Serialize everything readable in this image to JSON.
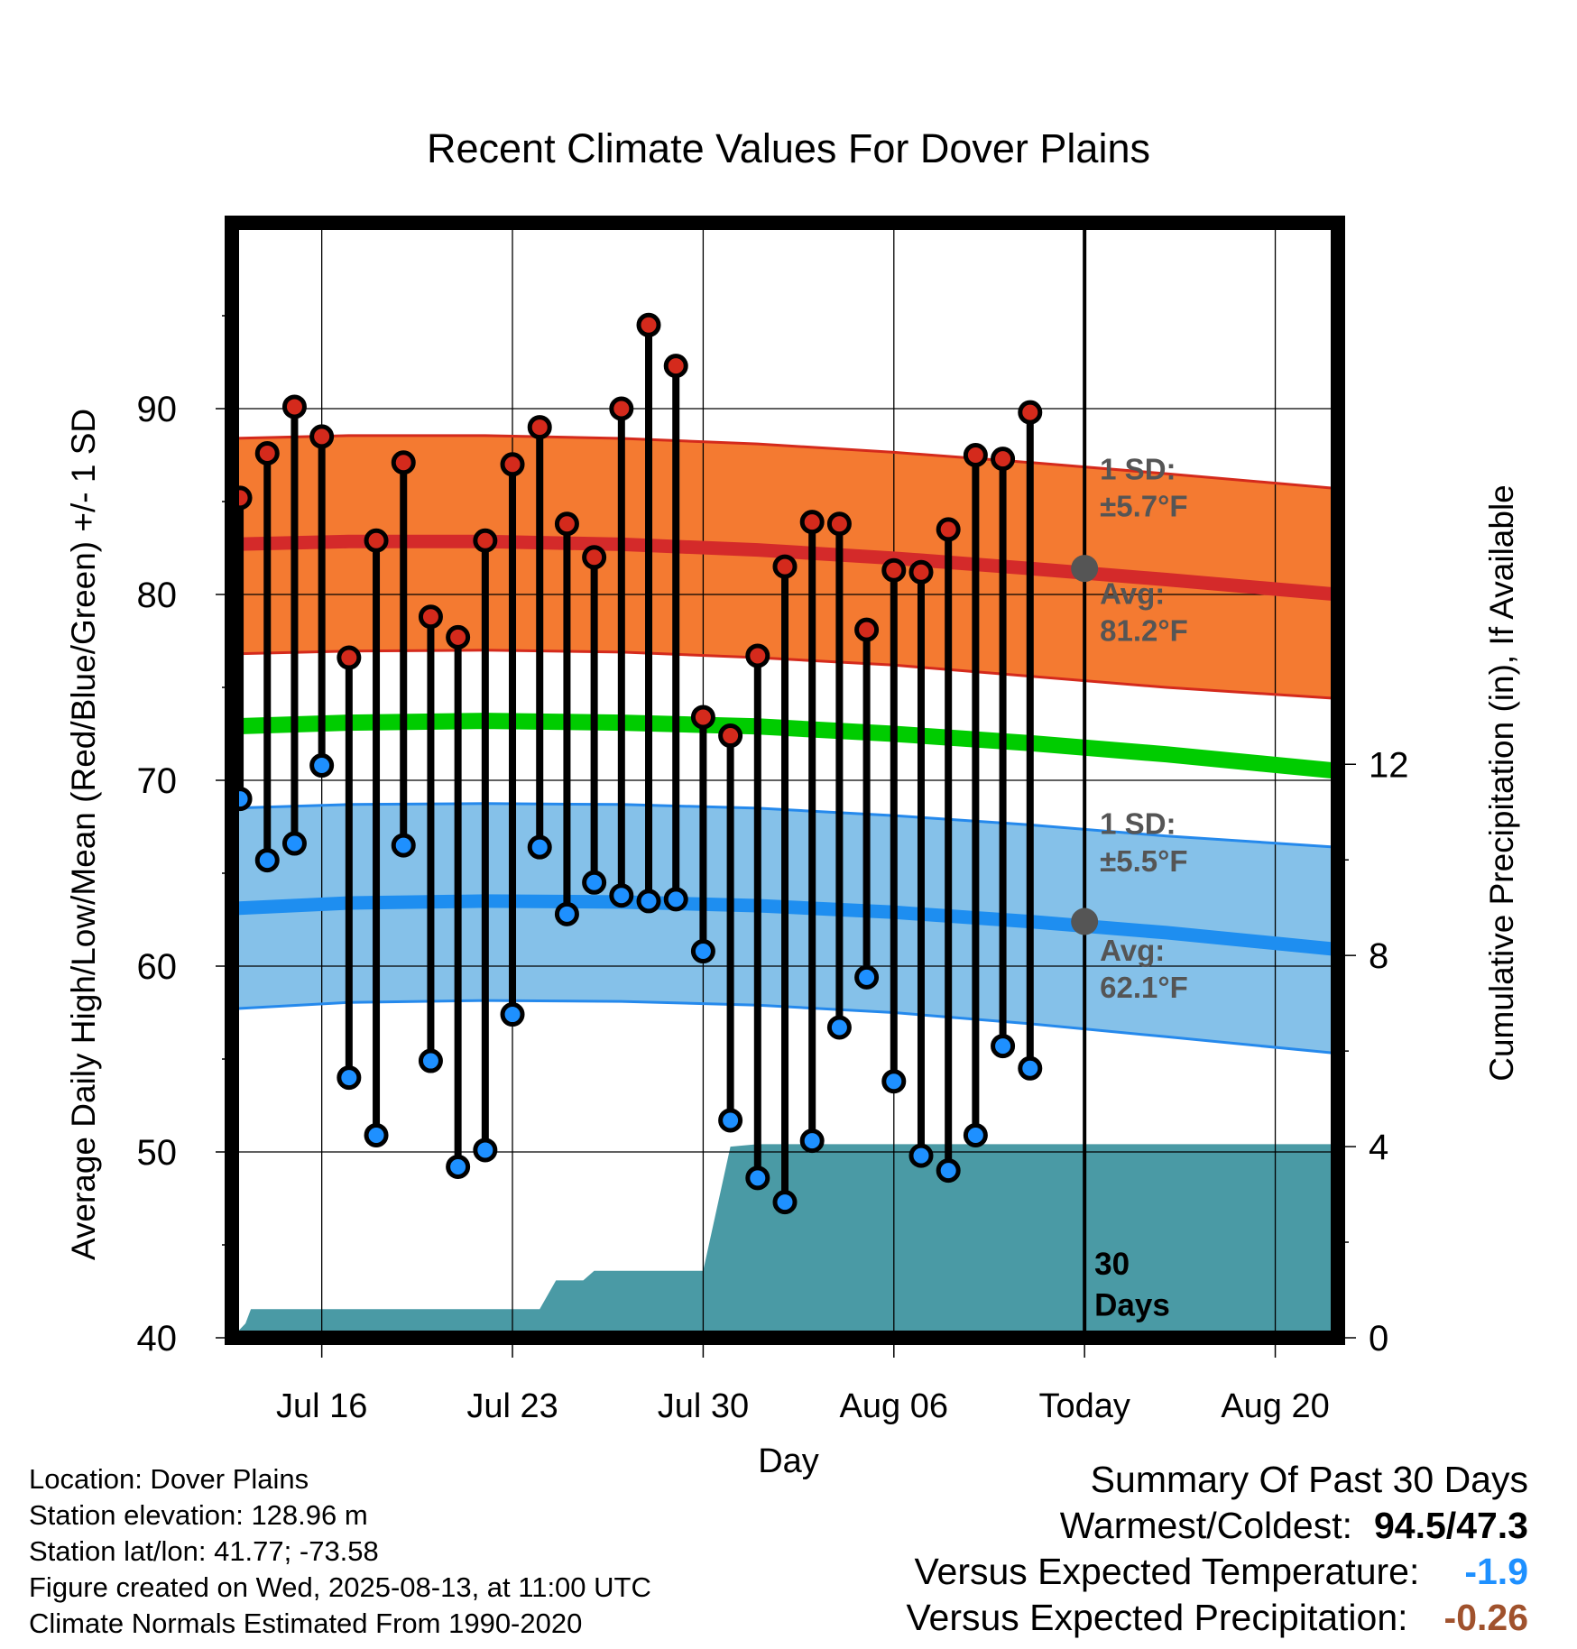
{
  "chart_data": {
    "type": "line",
    "title": "Recent Climate Values For Dover Plains",
    "xlabel": "Day",
    "ylabel": "Average Daily High/Low/Mean (Red/Blue/Green) +/- 1 SD",
    "y2label": "Cumulative Precipitation (in), If Available",
    "ylim": [
      40,
      100
    ],
    "y2lim": [
      0,
      23.33
    ],
    "yticks": [
      "40",
      "50",
      "60",
      "70",
      "80",
      "90"
    ],
    "y2ticks": [
      "0",
      "4",
      "8",
      "12"
    ],
    "xticks": [
      {
        "day": 4,
        "label": "Jul 16"
      },
      {
        "day": 11,
        "label": "Jul 23"
      },
      {
        "day": 18,
        "label": "Jul 30"
      },
      {
        "day": 25,
        "label": "Aug 06"
      },
      {
        "day": 32,
        "label": "Today"
      },
      {
        "day": 39,
        "label": "Aug 20"
      }
    ],
    "xrange": [
      0.7,
      41.3
    ],
    "series": [
      {
        "name": "High",
        "values": [
          85.2,
          87.6,
          90.1,
          88.5,
          76.6,
          82.9,
          87.1,
          78.8,
          77.7,
          82.9,
          87.0,
          89.0,
          83.8,
          82.0,
          90.0,
          94.5,
          92.3,
          73.4,
          72.4,
          76.7,
          81.5,
          83.9,
          83.8,
          78.1,
          81.3,
          81.2,
          83.5,
          87.5,
          87.3,
          89.8
        ]
      },
      {
        "name": "Low",
        "values": [
          69.0,
          65.7,
          66.6,
          70.8,
          54.0,
          50.9,
          66.5,
          54.9,
          49.2,
          50.1,
          57.4,
          66.4,
          62.8,
          64.5,
          63.8,
          63.5,
          63.6,
          60.8,
          51.7,
          48.6,
          47.3,
          50.6,
          56.7,
          59.4,
          53.8,
          49.8,
          49.0,
          50.9,
          55.7,
          54.5
        ]
      }
    ],
    "observed_days": [
      1,
      30
    ],
    "normals": {
      "days": [
        0.7,
        5,
        10,
        15,
        20,
        25,
        30,
        35,
        41.3
      ],
      "high_mean": [
        82.7,
        82.85,
        82.85,
        82.7,
        82.4,
        81.95,
        81.4,
        80.8,
        80.0
      ],
      "high_upper": [
        88.4,
        88.55,
        88.55,
        88.4,
        88.1,
        87.65,
        87.1,
        86.5,
        85.7
      ],
      "high_lower": [
        76.8,
        76.95,
        77.0,
        76.9,
        76.6,
        76.2,
        75.6,
        75.0,
        74.4
      ],
      "low_mean": [
        63.1,
        63.4,
        63.5,
        63.45,
        63.25,
        62.9,
        62.4,
        61.8,
        60.9
      ],
      "low_upper": [
        68.5,
        68.7,
        68.75,
        68.7,
        68.5,
        68.1,
        67.6,
        67.0,
        66.4
      ],
      "low_lower": [
        57.7,
        58.05,
        58.15,
        58.1,
        57.9,
        57.5,
        56.9,
        56.2,
        55.3
      ],
      "mean": [
        72.9,
        73.1,
        73.2,
        73.1,
        72.9,
        72.5,
        72.0,
        71.4,
        70.5
      ]
    },
    "precipitation": {
      "days": [
        0.7,
        1.2,
        1.4,
        11.6,
        12.0,
        12.6,
        13.1,
        13.6,
        14.0,
        17.0,
        18.0,
        19.0,
        20.0,
        21.0,
        31.0,
        41.3
      ],
      "values": [
        0.0,
        0.3,
        0.6,
        0.6,
        0.6,
        1.2,
        1.2,
        1.2,
        1.4,
        1.4,
        1.4,
        4.0,
        4.05,
        4.05,
        4.05,
        4.05
      ]
    },
    "annotations": {
      "high_sd": "±5.7°F",
      "high_avg": "81.2°F",
      "low_sd": "±5.5°F",
      "low_avg": "62.1°F",
      "sd_label": "1 SD:",
      "avg_label": "Avg:",
      "days_label_1": "30",
      "days_label_2": "Days"
    },
    "today_day": 32,
    "grid": true
  },
  "colors": {
    "high_band": "#f47a31",
    "high_edge": "#d42a1c",
    "high_mean": "#d42a2a",
    "low_band": "#85c1e9",
    "low_edge": "#2589ec",
    "low_mean": "#1e8ef0",
    "mean_line": "#00cc00",
    "precip": "#4a9aa5",
    "high_dot": "#d42a1c",
    "low_dot": "#1e90ff",
    "annotation": "#555555",
    "temp_diff": "#1e90ff",
    "precip_diff": "#a0522d"
  },
  "info": {
    "location": "Location: Dover Plains",
    "elevation": "Station elevation: 128.96 m",
    "latlon": "Station lat/lon: 41.77; -73.58",
    "created": "Figure created on Wed, 2025-08-13, at 11:00 UTC",
    "normals": "Climate Normals Estimated From 1990-2020"
  },
  "summary": {
    "title": "Summary Of Past 30 Days",
    "warm_label": "Warmest/Coldest:",
    "warm_value": "94.5/47.3",
    "temp_label": "Versus Expected Temperature:",
    "temp_value": "-1.9",
    "precip_label": "Versus Expected Precipitation:",
    "precip_value": "-0.26"
  }
}
